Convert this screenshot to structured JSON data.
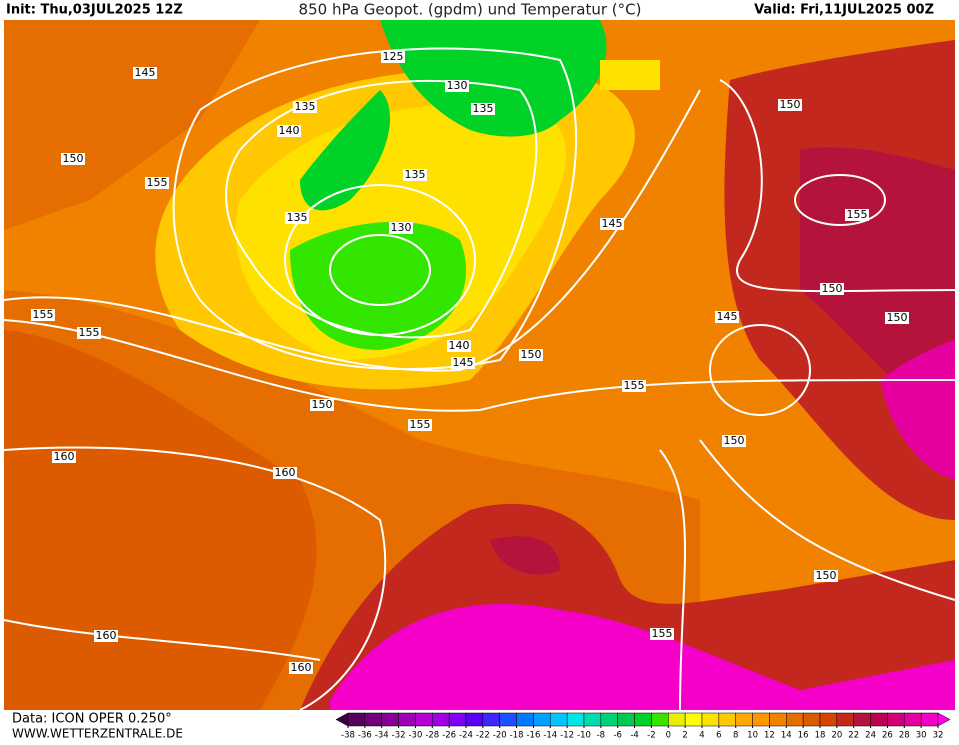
{
  "header": {
    "init": "Init: Thu,03JUL2025 12Z",
    "title": "850 hPa Geopot. (gpdm) und Temperatur (°C)",
    "valid": "Valid: Fri,11JUL2025 00Z"
  },
  "footer": {
    "data": "Data: ICON OPER 0.250°",
    "site": "WWW.WETTERZENTRALE.DE"
  },
  "contour_labels": [
    "125",
    "130",
    "135",
    "140",
    "135",
    "145",
    "150",
    "155",
    "135",
    "135",
    "130",
    "145",
    "150",
    "155",
    "150",
    "145",
    "150",
    "155",
    "155",
    "140",
    "145",
    "150",
    "150",
    "155",
    "155",
    "150",
    "160",
    "160",
    "150",
    "155",
    "160",
    "160"
  ],
  "colorbar": {
    "ticks": [
      -38,
      -36,
      -34,
      -32,
      -30,
      -28,
      -26,
      -24,
      -22,
      -20,
      -18,
      -16,
      -14,
      -12,
      -10,
      -8,
      -6,
      -4,
      -2,
      0,
      2,
      4,
      6,
      8,
      10,
      12,
      14,
      16,
      18,
      20,
      22,
      24,
      26,
      28,
      30,
      32
    ],
    "colors": [
      "#3d0040",
      "#55005a",
      "#6e0078",
      "#870096",
      "#9f00b4",
      "#b400d2",
      "#a000e6",
      "#8200f0",
      "#5a00f5",
      "#3c28ff",
      "#1e50ff",
      "#0078ff",
      "#00a0ff",
      "#00c8ff",
      "#00e6e6",
      "#00dcaa",
      "#00d278",
      "#00c850",
      "#00d228",
      "#32e600",
      "#e6f000",
      "#ffff00",
      "#ffe100",
      "#ffc800",
      "#ffaa00",
      "#ff9600",
      "#f08200",
      "#e66e00",
      "#dc5a00",
      "#d24600",
      "#c3281e",
      "#b4143c",
      "#be0050",
      "#d20078",
      "#e600a0",
      "#f500c8",
      "#ff00e6"
    ]
  }
}
